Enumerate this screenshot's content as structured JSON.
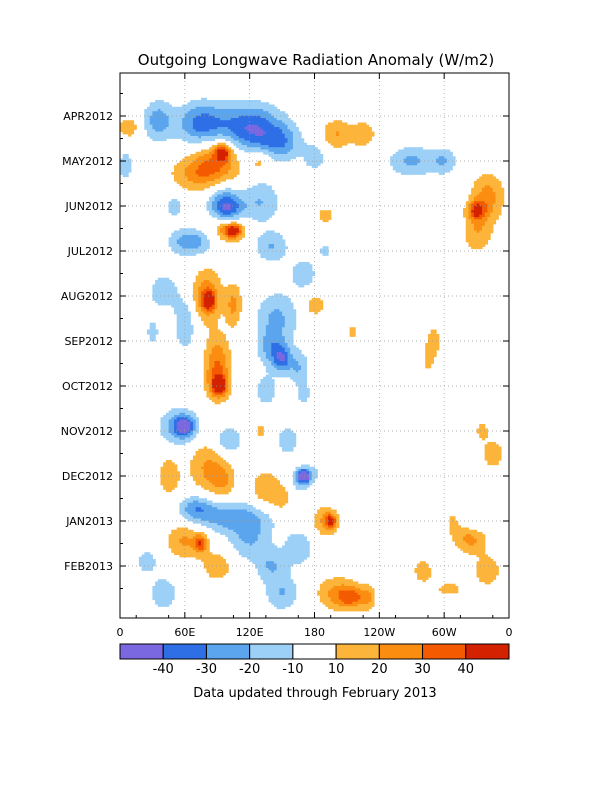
{
  "chart_data": {
    "type": "heatmap",
    "title": "Outgoing Longwave Radiation Anomaly (W/m2)",
    "footnote": "Data updated through February 2013",
    "x_ticks": [
      "0",
      "60E",
      "120E",
      "180",
      "120W",
      "60W",
      "0"
    ],
    "x_range_deg": [
      0,
      360
    ],
    "y_ticks": [
      "APR2012",
      "MAY2012",
      "JUN2012",
      "JUL2012",
      "AUG2012",
      "SEP2012",
      "OCT2012",
      "NOV2012",
      "DEC2012",
      "JAN2013",
      "FEB2013"
    ],
    "y_range_months": [
      0,
      11.8
    ],
    "grid": true,
    "colorbar": {
      "labels": [
        "-40",
        "-30",
        "-20",
        "-10",
        "10",
        "20",
        "30",
        "40"
      ],
      "colors": [
        "#7a68e0",
        "#2e6fe6",
        "#5aa5ee",
        "#9cd0f6",
        "#ffffff",
        "#fcb43a",
        "#fb8d10",
        "#f45b00",
        "#d42200"
      ]
    },
    "anomaly_blobs": [
      {
        "lon": 35,
        "month": 0.1,
        "rlon": 14,
        "rmon": 0.45,
        "value": -25
      },
      {
        "lon": 75,
        "month": 0.2,
        "rlon": 22,
        "rmon": 0.5,
        "value": -35
      },
      {
        "lon": 120,
        "month": 0.3,
        "rlon": 30,
        "rmon": 0.55,
        "value": -42
      },
      {
        "lon": 150,
        "month": 0.6,
        "rlon": 18,
        "rmon": 0.4,
        "value": -22
      },
      {
        "lon": 180,
        "month": 0.9,
        "rlon": 10,
        "rmon": 0.3,
        "value": -18
      },
      {
        "lon": 200,
        "month": 0.4,
        "rlon": 14,
        "rmon": 0.35,
        "value": 20
      },
      {
        "lon": 225,
        "month": 0.4,
        "rlon": 12,
        "rmon": 0.3,
        "value": 18
      },
      {
        "lon": 8,
        "month": 0.25,
        "rlon": 10,
        "rmon": 0.25,
        "value": 18
      },
      {
        "lon": 90,
        "month": 0.9,
        "rlon": 25,
        "rmon": 0.55,
        "value": 26
      },
      {
        "lon": 95,
        "month": 0.8,
        "rlon": 8,
        "rmon": 0.2,
        "value": 35
      },
      {
        "lon": 130,
        "month": 1.0,
        "rlon": 10,
        "rmon": 0.25,
        "value": 18
      },
      {
        "lon": 270,
        "month": 1.0,
        "rlon": 22,
        "rmon": 0.35,
        "value": -22
      },
      {
        "lon": 300,
        "month": 1.0,
        "rlon": 12,
        "rmon": 0.3,
        "value": -18
      },
      {
        "lon": 5,
        "month": 1.1,
        "rlon": 8,
        "rmon": 0.4,
        "value": -15
      },
      {
        "lon": 75,
        "month": 1.3,
        "rlon": 28,
        "rmon": 0.4,
        "value": 22
      },
      {
        "lon": 95,
        "month": 1.8,
        "rlon": 16,
        "rmon": 0.4,
        "value": -22
      },
      {
        "lon": 130,
        "month": 1.9,
        "rlon": 18,
        "rmon": 0.5,
        "value": -20
      },
      {
        "lon": 50,
        "month": 2.0,
        "rlon": 10,
        "rmon": 0.3,
        "value": -15
      },
      {
        "lon": 100,
        "month": 2.1,
        "rlon": 14,
        "rmon": 0.3,
        "value": -32
      },
      {
        "lon": 340,
        "month": 1.8,
        "rlon": 16,
        "rmon": 0.55,
        "value": 24
      },
      {
        "lon": 330,
        "month": 2.1,
        "rlon": 8,
        "rmon": 0.2,
        "value": 34
      },
      {
        "lon": 330,
        "month": 2.6,
        "rlon": 14,
        "rmon": 0.45,
        "value": 18
      },
      {
        "lon": 190,
        "month": 2.2,
        "rlon": 8,
        "rmon": 0.2,
        "value": 15
      },
      {
        "lon": 100,
        "month": 2.5,
        "rlon": 16,
        "rmon": 0.3,
        "value": 25
      },
      {
        "lon": 105,
        "month": 2.55,
        "rlon": 8,
        "rmon": 0.15,
        "value": 36
      },
      {
        "lon": 65,
        "month": 2.8,
        "rlon": 20,
        "rmon": 0.3,
        "value": -28
      },
      {
        "lon": 140,
        "month": 2.9,
        "rlon": 16,
        "rmon": 0.35,
        "value": -20
      },
      {
        "lon": 190,
        "month": 3.0,
        "rlon": 8,
        "rmon": 0.2,
        "value": -12
      },
      {
        "lon": 80,
        "month": 4.0,
        "rlon": 14,
        "rmon": 0.6,
        "value": 28
      },
      {
        "lon": 82,
        "month": 4.1,
        "rlon": 6,
        "rmon": 0.2,
        "value": 38
      },
      {
        "lon": 105,
        "month": 4.2,
        "rlon": 8,
        "rmon": 0.5,
        "value": 22
      },
      {
        "lon": 40,
        "month": 3.9,
        "rlon": 14,
        "rmon": 0.4,
        "value": -18
      },
      {
        "lon": 60,
        "month": 4.6,
        "rlon": 10,
        "rmon": 0.6,
        "value": -20
      },
      {
        "lon": 145,
        "month": 4.5,
        "rlon": 20,
        "rmon": 0.6,
        "value": -22
      },
      {
        "lon": 170,
        "month": 3.5,
        "rlon": 14,
        "rmon": 0.4,
        "value": -15
      },
      {
        "lon": 180,
        "month": 4.2,
        "rlon": 10,
        "rmon": 0.25,
        "value": 18
      },
      {
        "lon": 215,
        "month": 4.8,
        "rlon": 8,
        "rmon": 0.3,
        "value": 12
      },
      {
        "lon": 140,
        "month": 5.2,
        "rlon": 12,
        "rmon": 0.4,
        "value": -22
      },
      {
        "lon": 150,
        "month": 5.4,
        "rlon": 8,
        "rmon": 0.3,
        "value": -30
      },
      {
        "lon": 165,
        "month": 5.6,
        "rlon": 10,
        "rmon": 0.4,
        "value": -20
      },
      {
        "lon": 90,
        "month": 5.3,
        "rlon": 12,
        "rmon": 0.5,
        "value": 22
      },
      {
        "lon": 90,
        "month": 5.9,
        "rlon": 12,
        "rmon": 0.45,
        "value": 28
      },
      {
        "lon": 92,
        "month": 6.0,
        "rlon": 6,
        "rmon": 0.2,
        "value": 38
      },
      {
        "lon": 30,
        "month": 4.8,
        "rlon": 6,
        "rmon": 0.3,
        "value": -15
      },
      {
        "lon": 290,
        "month": 5.0,
        "rlon": 6,
        "rmon": 0.35,
        "value": 18
      },
      {
        "lon": 285,
        "month": 5.4,
        "rlon": 5,
        "rmon": 0.3,
        "value": 16
      },
      {
        "lon": 135,
        "month": 6.1,
        "rlon": 10,
        "rmon": 0.35,
        "value": -18
      },
      {
        "lon": 170,
        "month": 6.2,
        "rlon": 6,
        "rmon": 0.25,
        "value": -15
      },
      {
        "lon": 55,
        "month": 6.9,
        "rlon": 18,
        "rmon": 0.4,
        "value": -28
      },
      {
        "lon": 60,
        "month": 6.9,
        "rlon": 8,
        "rmon": 0.2,
        "value": -34
      },
      {
        "lon": 100,
        "month": 7.2,
        "rlon": 12,
        "rmon": 0.3,
        "value": -22
      },
      {
        "lon": 130,
        "month": 7.0,
        "rlon": 6,
        "rmon": 0.2,
        "value": 15
      },
      {
        "lon": 155,
        "month": 7.2,
        "rlon": 10,
        "rmon": 0.3,
        "value": -20
      },
      {
        "lon": 335,
        "month": 7.0,
        "rlon": 6,
        "rmon": 0.2,
        "value": 16
      },
      {
        "lon": 345,
        "month": 7.5,
        "rlon": 10,
        "rmon": 0.3,
        "value": 20
      },
      {
        "lon": 80,
        "month": 7.8,
        "rlon": 18,
        "rmon": 0.6,
        "value": 20
      },
      {
        "lon": 95,
        "month": 8.1,
        "rlon": 12,
        "rmon": 0.4,
        "value": 18
      },
      {
        "lon": 175,
        "month": 8.1,
        "rlon": 16,
        "rmon": 0.3,
        "value": -28
      },
      {
        "lon": 170,
        "month": 8.0,
        "rlon": 6,
        "rmon": 0.15,
        "value": -42
      },
      {
        "lon": 182,
        "month": 8.2,
        "rlon": 12,
        "rmon": 0.25,
        "value": 22
      },
      {
        "lon": 45,
        "month": 8.0,
        "rlon": 10,
        "rmon": 0.45,
        "value": 18
      },
      {
        "lon": 135,
        "month": 8.3,
        "rlon": 14,
        "rmon": 0.45,
        "value": 20
      },
      {
        "lon": 150,
        "month": 8.5,
        "rlon": 8,
        "rmon": 0.3,
        "value": 15
      },
      {
        "lon": 100,
        "month": 8.9,
        "rlon": 40,
        "rmon": 0.35,
        "value": -25
      },
      {
        "lon": 70,
        "month": 8.7,
        "rlon": 16,
        "rmon": 0.3,
        "value": -22
      },
      {
        "lon": 190,
        "month": 9.0,
        "rlon": 12,
        "rmon": 0.35,
        "value": 22
      },
      {
        "lon": 195,
        "month": 9.0,
        "rlon": 5,
        "rmon": 0.15,
        "value": 32
      },
      {
        "lon": 325,
        "month": 9.0,
        "rlon": 12,
        "rmon": 0.25,
        "value": -15
      },
      {
        "lon": 310,
        "month": 9.0,
        "rlon": 14,
        "rmon": 0.45,
        "value": 12
      },
      {
        "lon": 60,
        "month": 9.4,
        "rlon": 18,
        "rmon": 0.45,
        "value": 22
      },
      {
        "lon": 75,
        "month": 9.5,
        "rlon": 6,
        "rmon": 0.2,
        "value": 32
      },
      {
        "lon": 120,
        "month": 9.4,
        "rlon": 20,
        "rmon": 0.5,
        "value": -20
      },
      {
        "lon": 165,
        "month": 9.6,
        "rlon": 14,
        "rmon": 0.4,
        "value": -18
      },
      {
        "lon": 325,
        "month": 9.4,
        "rlon": 14,
        "rmon": 0.35,
        "value": 22
      },
      {
        "lon": 25,
        "month": 9.9,
        "rlon": 10,
        "rmon": 0.3,
        "value": -16
      },
      {
        "lon": 90,
        "month": 10.0,
        "rlon": 14,
        "rmon": 0.35,
        "value": 18
      },
      {
        "lon": 140,
        "month": 10.0,
        "rlon": 14,
        "rmon": 0.35,
        "value": -18
      },
      {
        "lon": 280,
        "month": 10.1,
        "rlon": 10,
        "rmon": 0.3,
        "value": 15
      },
      {
        "lon": 340,
        "month": 10.1,
        "rlon": 12,
        "rmon": 0.35,
        "value": 18
      },
      {
        "lon": 200,
        "month": 10.6,
        "rlon": 20,
        "rmon": 0.4,
        "value": 20
      },
      {
        "lon": 215,
        "month": 10.7,
        "rlon": 14,
        "rmon": 0.25,
        "value": 28
      },
      {
        "lon": 230,
        "month": 10.7,
        "rlon": 6,
        "rmon": 0.3,
        "value": 15
      },
      {
        "lon": 150,
        "month": 10.6,
        "rlon": 16,
        "rmon": 0.4,
        "value": -20
      },
      {
        "lon": 40,
        "month": 10.6,
        "rlon": 12,
        "rmon": 0.35,
        "value": -20
      },
      {
        "lon": 305,
        "month": 10.5,
        "rlon": 20,
        "rmon": 0.25,
        "value": 12
      }
    ]
  }
}
